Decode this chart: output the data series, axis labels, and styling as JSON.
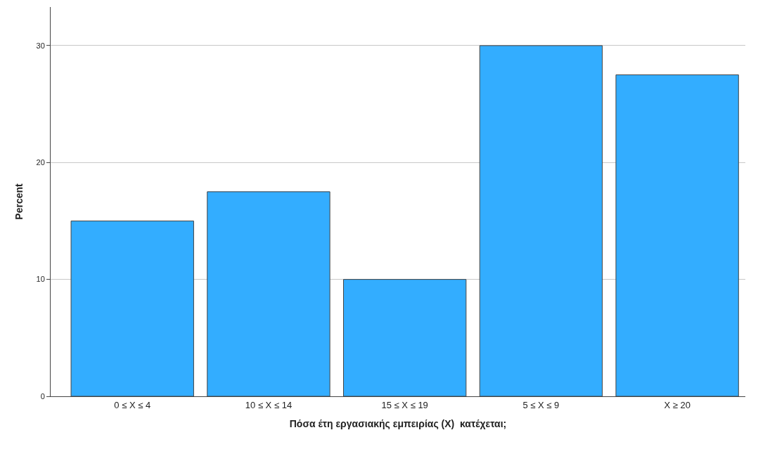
{
  "chart_data": {
    "type": "bar",
    "categories": [
      "0 ≤ X ≤ 4",
      "10 ≤ X ≤ 14",
      "15 ≤ X ≤ 19",
      "5 ≤ X ≤ 9",
      "X ≥ 20"
    ],
    "values": [
      15,
      17.5,
      10,
      30,
      27.5
    ],
    "color": "#33adff",
    "xlabel": "Πόσα έτη εργασιακής εμπειρίας (X)  κατέχεται;",
    "ylabel": "Percent",
    "ylim": [
      0,
      33.3
    ],
    "yticks": [
      0,
      10,
      20,
      30
    ],
    "grid": "y"
  }
}
